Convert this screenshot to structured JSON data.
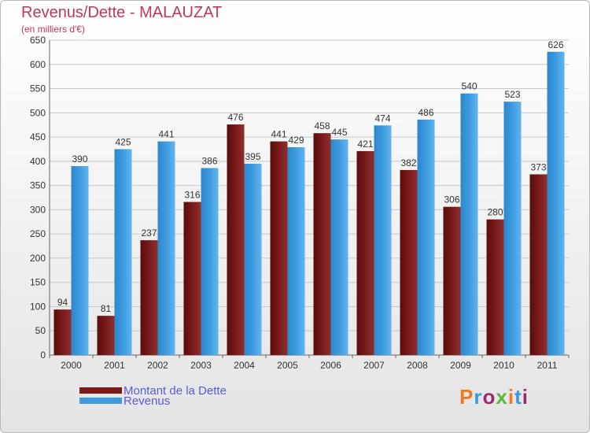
{
  "header": {
    "title": "Revenus/Dette - MALAUZAT",
    "subtitle": "(en milliers d'€)"
  },
  "logo": {
    "text": "Proxiti",
    "colors": [
      "#f07820",
      "#3a9ad9",
      "#9b2a6e",
      "#58b83c",
      "#f07820",
      "#3a9ad9",
      "#9b2a6e"
    ]
  },
  "colors": {
    "debt": "#7a1a1a",
    "revenue": "#3d9be0",
    "title": "#c0365a",
    "legend_text": "#5a5adc"
  },
  "chart_data": {
    "type": "bar",
    "title": "Revenus/Dette - MALAUZAT",
    "subtitle": "(en milliers d'€)",
    "categories": [
      "2000",
      "2001",
      "2002",
      "2003",
      "2004",
      "2005",
      "2006",
      "2007",
      "2008",
      "2009",
      "2010",
      "2011"
    ],
    "series": [
      {
        "name": "Montant de la Dette",
        "values": [
          94,
          81,
          237,
          316,
          476,
          441,
          458,
          421,
          382,
          306,
          280,
          373
        ]
      },
      {
        "name": "Revenus",
        "values": [
          390,
          425,
          441,
          386,
          395,
          429,
          445,
          474,
          486,
          540,
          523,
          626
        ]
      }
    ],
    "ylim": [
      0,
      650
    ],
    "yticks": [
      0,
      50,
      100,
      150,
      200,
      250,
      300,
      350,
      400,
      450,
      500,
      550,
      600,
      650
    ],
    "grid": true,
    "legend": "bottom-left",
    "data_labels": true
  }
}
